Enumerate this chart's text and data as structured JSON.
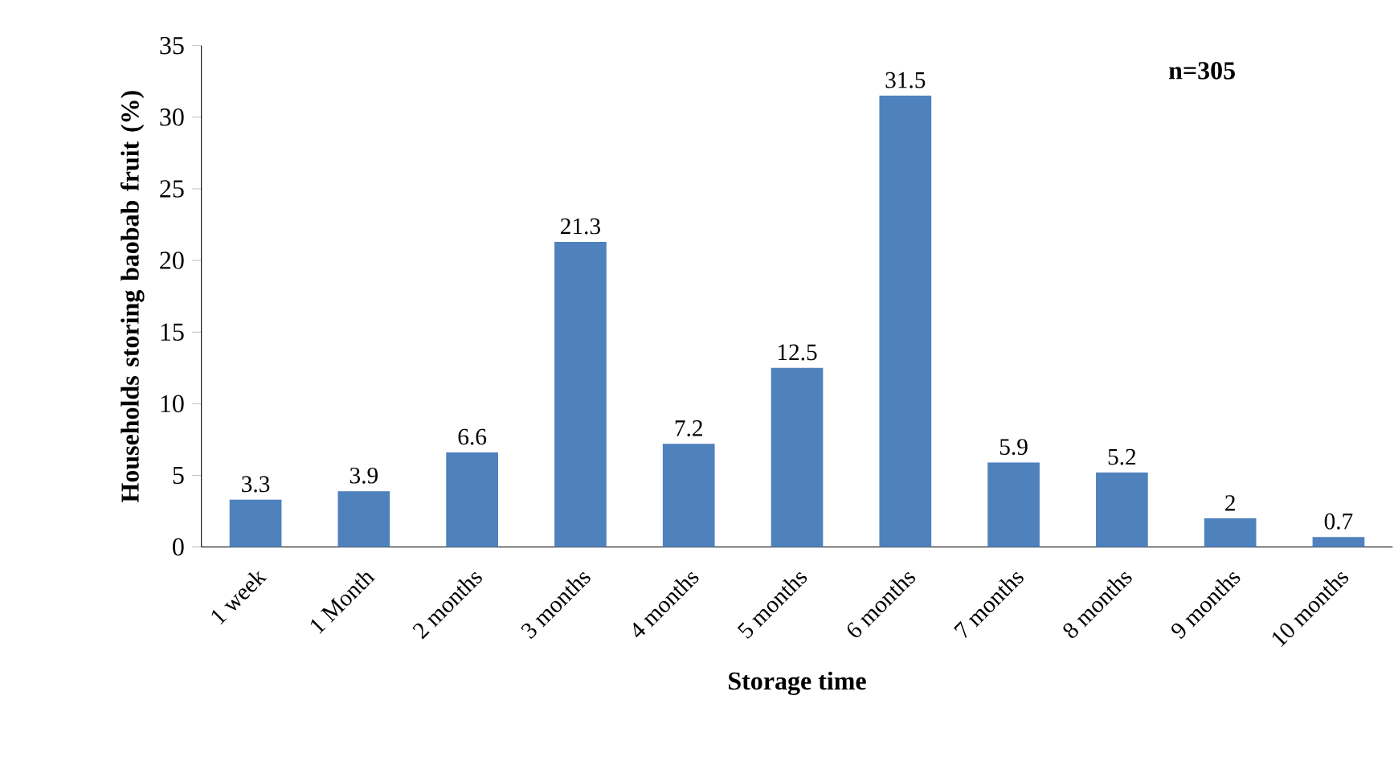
{
  "chart_data": {
    "type": "bar",
    "xlabel": "Storage time",
    "ylabel": "Households storing baobab fruit (%)",
    "categories": [
      "1 week",
      "1 Month",
      "2 months",
      "3 months",
      "4 months",
      "5 months",
      "6 months",
      "7 months",
      "8 months",
      "9 months",
      "10 months"
    ],
    "values": [
      3.3,
      3.9,
      6.6,
      21.3,
      7.2,
      12.5,
      31.5,
      5.9,
      5.2,
      2,
      0.7
    ],
    "color": "#4f81bd",
    "ylim": [
      0,
      35
    ],
    "yticks": [
      0,
      5,
      10,
      15,
      20,
      25,
      30,
      35
    ],
    "data_labels": true,
    "annotations": [
      "n=305"
    ]
  }
}
